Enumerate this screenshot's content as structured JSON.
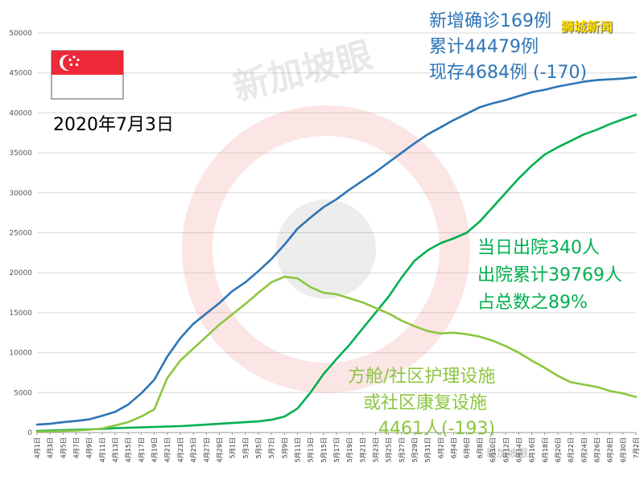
{
  "header": {
    "new_cases": "新增确诊169例",
    "total_cases": "累计44479例",
    "current_cases": "现存4684例 (-170)"
  },
  "date_label": "2020年7月3日",
  "source_label": "狮城新闻",
  "watermark": {
    "text": "新加坡眼",
    "footer": "新加坡眼"
  },
  "annotations": {
    "discharged": [
      "当日出院340人",
      "出院累计39769人",
      "占总数之89%"
    ],
    "facilities": [
      "方舱/社区护理设施",
      "或社区康复设施",
      "4461人(-193)"
    ]
  },
  "colors": {
    "total": "#2e75b6",
    "discharged": "#00b050",
    "facilities": "#8cc63f",
    "flag_red": "#ed2939",
    "flag_white": "#ffffff",
    "source": "#ffe000"
  },
  "chart_data": {
    "type": "line",
    "ylim": [
      0,
      50000
    ],
    "yticks": [
      0,
      5000,
      10000,
      15000,
      20000,
      25000,
      30000,
      35000,
      40000,
      45000,
      50000
    ],
    "x": [
      "4月1日",
      "4月3日",
      "4月5日",
      "4月7日",
      "4月9日",
      "4月11日",
      "4月13日",
      "4月15日",
      "4月17日",
      "4月19日",
      "4月21日",
      "4月23日",
      "4月25日",
      "4月27日",
      "4月29日",
      "5月1日",
      "5月3日",
      "5月5日",
      "5月7日",
      "5月9日",
      "5月11日",
      "5月13日",
      "5月15日",
      "5月17日",
      "5月19日",
      "5月21日",
      "5月23日",
      "5月25日",
      "5月27日",
      "5月29日",
      "5月31日",
      "6月2日",
      "6月4日",
      "6月6日",
      "6月8日",
      "6月10日",
      "6月12日",
      "6月14日",
      "6月16日",
      "6月18日",
      "6月20日",
      "6月22日",
      "6月24日",
      "6月26日",
      "6月28日",
      "6月30日",
      "7月2日"
    ],
    "series": [
      {
        "key": "total",
        "values": [
          1000,
          1100,
          1300,
          1450,
          1650,
          2100,
          2600,
          3500,
          4900,
          6600,
          9500,
          11800,
          13600,
          14900,
          16200,
          17700,
          18800,
          20200,
          21700,
          23500,
          25500,
          26900,
          28200,
          29200,
          30400,
          31500,
          32600,
          33800,
          35000,
          36200,
          37300,
          38200,
          39100,
          39900,
          40700,
          41200,
          41600,
          42100,
          42600,
          42900,
          43300,
          43600,
          43900,
          44100,
          44200,
          44300,
          44479
        ]
      },
      {
        "key": "discharged",
        "values": [
          200,
          250,
          300,
          350,
          400,
          450,
          550,
          600,
          650,
          700,
          750,
          800,
          900,
          1000,
          1100,
          1200,
          1300,
          1400,
          1600,
          2000,
          3000,
          5000,
          7300,
          9200,
          11000,
          13000,
          15000,
          17000,
          19400,
          21500,
          22800,
          23700,
          24300,
          25000,
          26400,
          28200,
          30000,
          31800,
          33400,
          34800,
          35700,
          36500,
          37300,
          37900,
          38600,
          39200,
          39769
        ]
      },
      {
        "key": "facilities",
        "values": [
          100,
          150,
          200,
          250,
          350,
          500,
          900,
          1300,
          2000,
          2900,
          6800,
          9000,
          10500,
          12000,
          13500,
          14800,
          16100,
          17500,
          18800,
          19500,
          19300,
          18200,
          17500,
          17300,
          16800,
          16300,
          15600,
          14900,
          14000,
          13300,
          12700,
          12400,
          12500,
          12300,
          12000,
          11500,
          10800,
          10000,
          9000,
          8100,
          7100,
          6300,
          6000,
          5700,
          5200,
          4900,
          4461
        ]
      }
    ]
  }
}
